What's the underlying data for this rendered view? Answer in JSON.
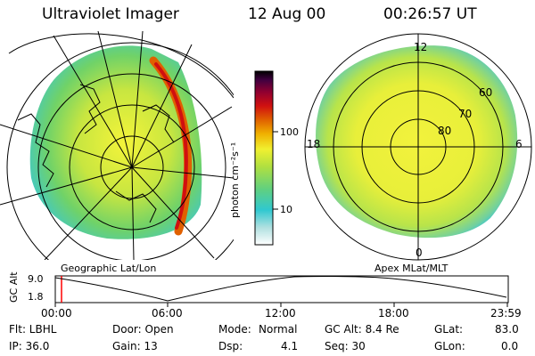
{
  "header": {
    "instrument": "Ultraviolet Imager",
    "date": "12 Aug 00",
    "time": "00:26:57 UT"
  },
  "colorbar": {
    "unit_label": "photon cm⁻²s⁻¹",
    "ticks": [
      "100",
      "10"
    ]
  },
  "left_panel": {
    "caption": "Geographic Lat/Lon"
  },
  "right_panel": {
    "caption": "Apex MLat/MLT",
    "mlt_labels": [
      "12",
      "18",
      "6",
      "0"
    ],
    "lat_labels": [
      "60",
      "70",
      "80"
    ]
  },
  "altitude_plot": {
    "axis_label": "GC Alt",
    "y_ticks": [
      "9.0",
      "1.8"
    ],
    "x_ticks": [
      "00:00",
      "06:00",
      "12:00",
      "18:00",
      "23:59"
    ],
    "marker_time": "00:26:57"
  },
  "footer": {
    "filter": "Flt: LBHL",
    "ip": "IP: 36.0",
    "door": "Door: Open",
    "gain": "Gain: 13",
    "mode_label": "Mode:",
    "mode_value": "Normal",
    "dsp_label": "Dsp:",
    "dsp_value": "4.1",
    "gc_alt": "GC Alt: 8.4 Re",
    "seq": "Seq: 30",
    "glat_label": "GLat:",
    "glat_value": "83.0",
    "glon_label": "GLon:",
    "glon_value": "0.0"
  },
  "colors": {
    "colorbar_stops": [
      "#ffffff",
      "#b0e0e0",
      "#30c8d0",
      "#60d080",
      "#b0e040",
      "#f0f030",
      "#f0b000",
      "#e06000",
      "#d01010",
      "#900030",
      "#400040",
      "#000000"
    ],
    "marker": "#ff0000"
  }
}
